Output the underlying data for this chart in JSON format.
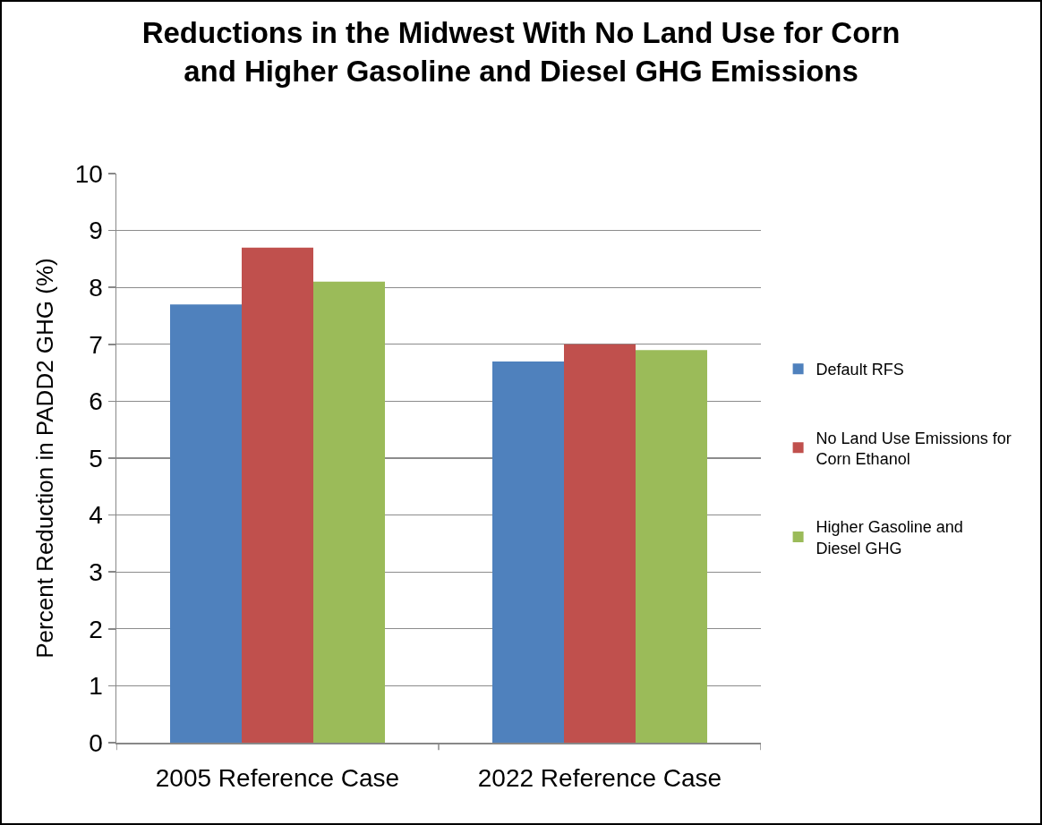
{
  "chart_data": {
    "type": "bar",
    "title": "Reductions in the Midwest With No Land Use for Corn and Higher Gasoline and Diesel GHG Emissions",
    "ylabel": "Percent Reduction in PADD2 GHG (%)",
    "categories": [
      "2005 Reference Case",
      "2022 Reference Case"
    ],
    "series": [
      {
        "name": "Default RFS",
        "color": "#4f81bd",
        "values": [
          7.7,
          6.7
        ]
      },
      {
        "name": "No Land Use Emissions for Corn Ethanol",
        "color": "#c0504d",
        "values": [
          8.7,
          7.0
        ]
      },
      {
        "name": "Higher Gasoline and Diesel GHG",
        "color": "#9bbb59",
        "values": [
          8.1,
          6.9
        ]
      }
    ],
    "ylim": [
      0,
      10
    ],
    "yticks": [
      0,
      1,
      2,
      3,
      4,
      5,
      6,
      7,
      8,
      9,
      10
    ],
    "grid": "y",
    "legend": "right"
  }
}
